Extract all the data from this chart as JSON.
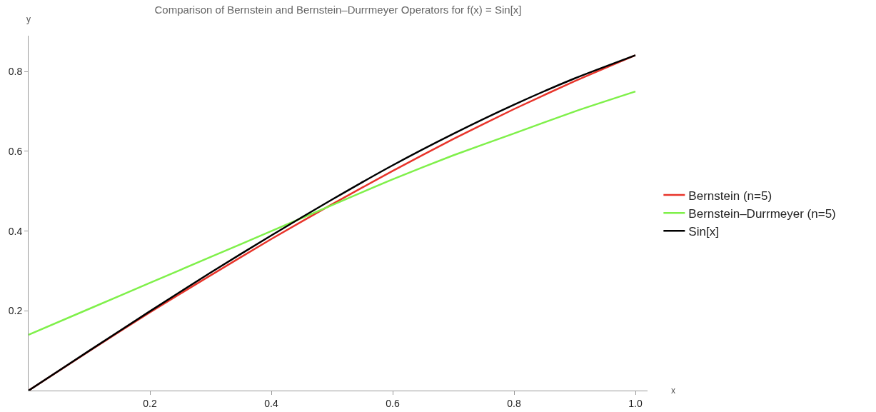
{
  "chart_data": {
    "type": "line",
    "title": "Comparison of Bernstein and Bernstein–Durrmeyer Operators for f(x) = Sin[x]",
    "xlabel": "x",
    "ylabel": "y",
    "x": [
      0,
      0.1,
      0.2,
      0.3,
      0.4,
      0.5,
      0.6,
      0.7,
      0.8,
      0.9,
      1.0
    ],
    "series": [
      {
        "name": "Bernstein (n=5)",
        "color": "#e8342a",
        "values": [
          0,
          0.099,
          0.196,
          0.289,
          0.38,
          0.467,
          0.551,
          0.631,
          0.706,
          0.776,
          0.841
        ]
      },
      {
        "name": "Bernstein–Durrmeyer (n=5)",
        "color": "#7ff04a",
        "values": [
          0.14,
          0.205,
          0.27,
          0.335,
          0.4,
          0.465,
          0.53,
          0.59,
          0.645,
          0.7,
          0.75
        ]
      },
      {
        "name": "Sin[x]",
        "color": "#000000",
        "values": [
          0,
          0.1,
          0.199,
          0.296,
          0.389,
          0.479,
          0.565,
          0.644,
          0.717,
          0.783,
          0.841
        ]
      }
    ],
    "xlim": [
      0,
      1.02
    ],
    "ylim": [
      0,
      0.89
    ],
    "xticks": [
      0.2,
      0.4,
      0.6,
      0.8,
      {
        "value": 1,
        "label": "1.0"
      }
    ],
    "yticks": [
      0.2,
      0.4,
      0.6,
      0.8
    ],
    "grid": false,
    "legend": "right",
    "marker": "none",
    "line_style": "solid"
  }
}
